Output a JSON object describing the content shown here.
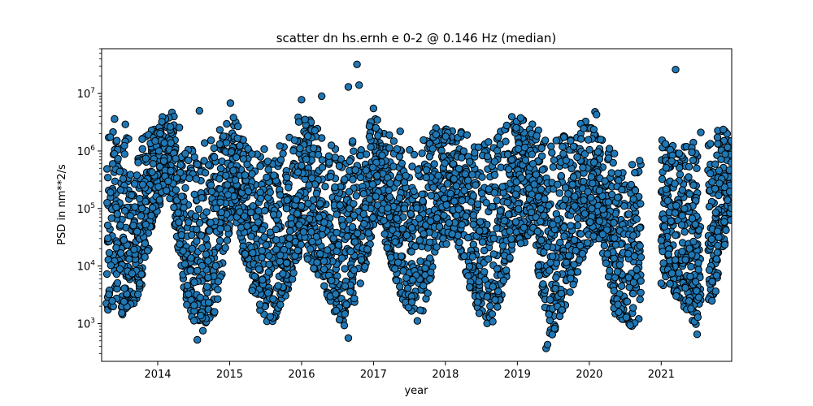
{
  "chart_data": {
    "type": "scatter",
    "title": "scatter dn hs.ernh e 0-2 @ 0.146 Hz (median)",
    "xlabel": "year",
    "ylabel": "PSD in nm**2/s",
    "xlim": [
      2013.22,
      2021.98
    ],
    "ylim": [
      220,
      60000000
    ],
    "yscale": "log",
    "grid": false,
    "x_ticks": [
      2014,
      2015,
      2016,
      2017,
      2018,
      2019,
      2020,
      2021
    ],
    "x_tick_labels": [
      "2014",
      "2015",
      "2016",
      "2017",
      "2018",
      "2019",
      "2020",
      "2021"
    ],
    "y_ticks": [
      1000,
      10000,
      100000,
      1000000,
      10000000
    ],
    "y_tick_labels": [
      "10^3",
      "10^4",
      "10^5",
      "10^6",
      "10^7"
    ],
    "marker": {
      "color": "#1f77b4",
      "edgecolor": "#000000"
    },
    "data_gaps": [
      [
        2020.72,
        2021.0
      ],
      [
        2021.55,
        2021.65
      ]
    ],
    "envelope_median_by_year": [
      {
        "x": 2013.3,
        "low": 1500,
        "high": 2500000
      },
      {
        "x": 2013.5,
        "low": 1200,
        "high": 2000000
      },
      {
        "x": 2013.75,
        "low": 3000,
        "high": 1500000
      },
      {
        "x": 2013.95,
        "low": 60000,
        "high": 3500000
      },
      {
        "x": 2014.15,
        "low": 200000,
        "high": 6000000
      },
      {
        "x": 2014.4,
        "low": 2000,
        "high": 2000000
      },
      {
        "x": 2014.6,
        "low": 600,
        "high": 1500000
      },
      {
        "x": 2014.8,
        "low": 1500,
        "high": 2000000
      },
      {
        "x": 2015.05,
        "low": 100000,
        "high": 5000000
      },
      {
        "x": 2015.3,
        "low": 3000,
        "high": 1500000
      },
      {
        "x": 2015.55,
        "low": 800,
        "high": 1200000
      },
      {
        "x": 2015.8,
        "low": 3000,
        "high": 1500000
      },
      {
        "x": 2016.0,
        "low": 20000,
        "high": 6000000
      },
      {
        "x": 2016.35,
        "low": 3000,
        "high": 1500000
      },
      {
        "x": 2016.6,
        "low": 700,
        "high": 1200000
      },
      {
        "x": 2016.9,
        "low": 10000,
        "high": 3000000
      },
      {
        "x": 2017.05,
        "low": 100000,
        "high": 5000000
      },
      {
        "x": 2017.35,
        "low": 3000,
        "high": 1500000
      },
      {
        "x": 2017.65,
        "low": 900,
        "high": 1500000
      },
      {
        "x": 2017.9,
        "low": 20000,
        "high": 3000000
      },
      {
        "x": 2018.15,
        "low": 30000,
        "high": 3000000
      },
      {
        "x": 2018.4,
        "low": 2000,
        "high": 1500000
      },
      {
        "x": 2018.65,
        "low": 700,
        "high": 1500000
      },
      {
        "x": 2018.95,
        "low": 20000,
        "high": 5000000
      },
      {
        "x": 2019.2,
        "low": 30000,
        "high": 3000000
      },
      {
        "x": 2019.45,
        "low": 500,
        "high": 1500000
      },
      {
        "x": 2019.7,
        "low": 2000,
        "high": 2000000
      },
      {
        "x": 2019.95,
        "low": 20000,
        "high": 4000000
      },
      {
        "x": 2020.15,
        "low": 30000,
        "high": 2500000
      },
      {
        "x": 2020.35,
        "low": 1500,
        "high": 1000000
      },
      {
        "x": 2020.6,
        "low": 800,
        "high": 700000
      },
      {
        "x": 2021.05,
        "low": 5000,
        "high": 2000000
      },
      {
        "x": 2021.3,
        "low": 2000,
        "high": 1500000
      },
      {
        "x": 2021.5,
        "low": 700,
        "high": 1500000
      },
      {
        "x": 2021.75,
        "low": 3000,
        "high": 2500000
      },
      {
        "x": 2021.95,
        "low": 60000,
        "high": 2500000
      }
    ],
    "outliers": [
      {
        "x": 2016.77,
        "y": 32000000
      },
      {
        "x": 2016.8,
        "y": 14000000
      },
      {
        "x": 2016.65,
        "y": 13000000
      },
      {
        "x": 2016.28,
        "y": 9000000
      },
      {
        "x": 2021.2,
        "y": 26000000
      },
      {
        "x": 2014.58,
        "y": 5000000
      },
      {
        "x": 2015.01,
        "y": 6800000
      },
      {
        "x": 2016.0,
        "y": 7800000
      },
      {
        "x": 2017.0,
        "y": 5500000
      },
      {
        "x": 2019.4,
        "y": 370
      },
      {
        "x": 2019.42,
        "y": 430
      },
      {
        "x": 2014.55,
        "y": 520
      },
      {
        "x": 2016.65,
        "y": 560
      },
      {
        "x": 2021.5,
        "y": 650
      },
      {
        "x": 2013.4,
        "y": 3600000
      },
      {
        "x": 2013.55,
        "y": 2900000
      },
      {
        "x": 2017.37,
        "y": 2200000
      },
      {
        "x": 2018.3,
        "y": 1900000
      },
      {
        "x": 2020.08,
        "y": 4800000
      },
      {
        "x": 2020.1,
        "y": 4300000
      },
      {
        "x": 2021.55,
        "y": 2100000
      },
      {
        "x": 2020.7,
        "y": 680000
      },
      {
        "x": 2021.0,
        "y": 28000
      },
      {
        "x": 2021.0,
        "y": 5000
      }
    ]
  }
}
